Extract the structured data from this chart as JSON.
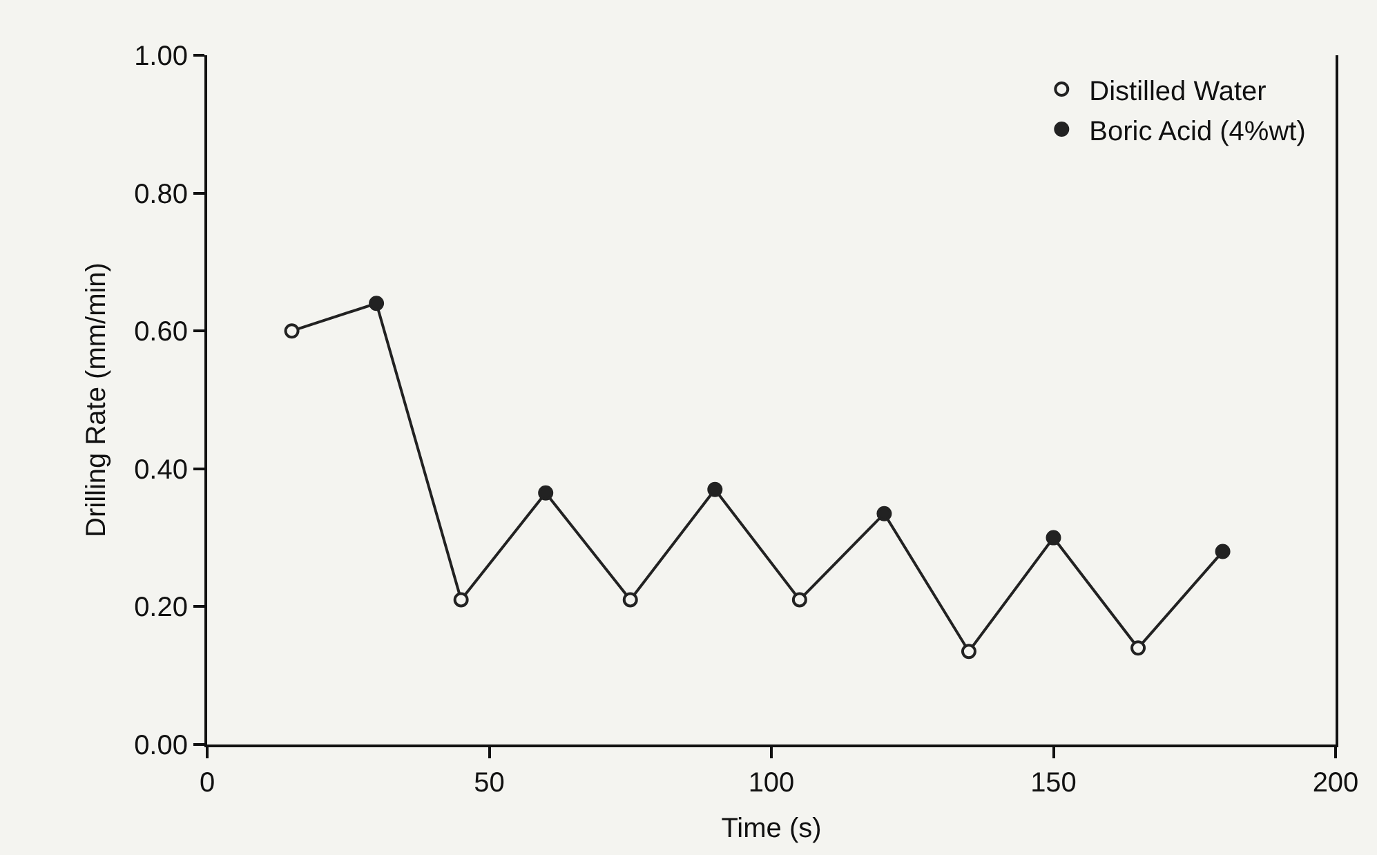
{
  "chart_data": {
    "type": "scatter",
    "xlabel": "Time (s)",
    "ylabel": "Drilling Rate (mm/min)",
    "xlim": [
      0,
      200
    ],
    "xticks": [
      0,
      50,
      100,
      150,
      200
    ],
    "ylim": [
      0,
      1
    ],
    "yticks": [
      {
        "value": 0,
        "label": "0.00"
      },
      {
        "value": 0.2,
        "label": "0.20"
      },
      {
        "value": 0.4,
        "label": "0.40"
      },
      {
        "value": 0.6,
        "label": "0.60"
      },
      {
        "value": 0.8,
        "label": "0.80"
      },
      {
        "value": 1,
        "label": "1.00"
      }
    ],
    "series": [
      {
        "type": "line",
        "color": "#222222",
        "marker": "none",
        "line_style": "solid",
        "x": [
          15,
          30,
          45,
          60,
          75,
          90,
          105,
          120,
          135,
          150,
          165,
          180
        ],
        "values": [
          0.6,
          0.64,
          0.21,
          0.365,
          0.21,
          0.37,
          0.21,
          0.335,
          0.135,
          0.3,
          0.14,
          0.28
        ]
      },
      {
        "name": "Distilled Water",
        "color": "#f4f4f0",
        "marker": "circle",
        "x": [
          15,
          45,
          75,
          105,
          135,
          165
        ],
        "values": [
          0.6,
          0.21,
          0.21,
          0.21,
          0.135,
          0.14
        ]
      },
      {
        "name": "Boric Acid (4%wt)",
        "color": "#222222",
        "marker": "circle",
        "x": [
          30,
          60,
          90,
          120,
          150,
          180
        ],
        "values": [
          0.64,
          0.365,
          0.37,
          0.335,
          0.3,
          0.28
        ]
      }
    ],
    "grid": false,
    "legend": "top right"
  }
}
